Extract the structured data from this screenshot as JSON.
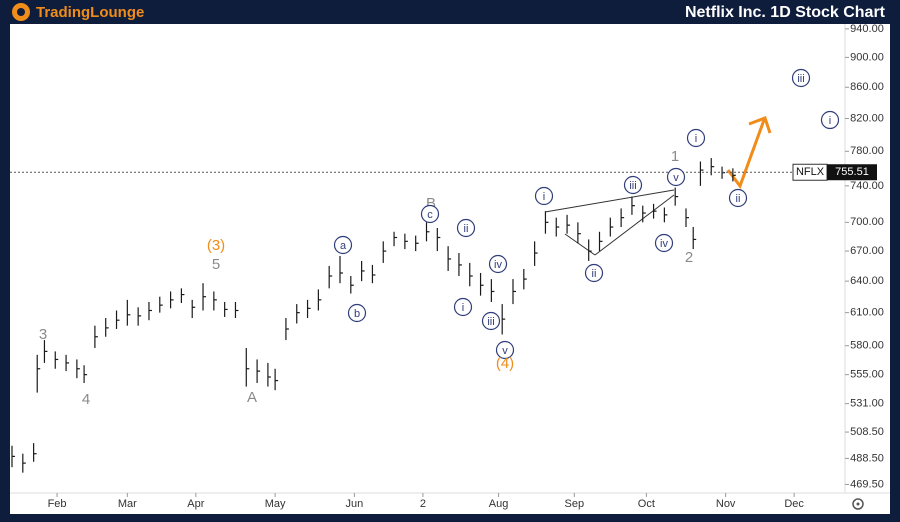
{
  "header": {
    "logo": "TradingLounge",
    "title": "Netflix Inc. 1D Stock Chart"
  },
  "chart_data": {
    "type": "ohlc",
    "log_scale": true,
    "color": "#1a1a1a",
    "xlim": [
      0,
      231
    ],
    "ylim": [
      462,
      947
    ],
    "xticks": [
      {
        "value": 12.5,
        "label": "Feb"
      },
      {
        "value": 32,
        "label": "Mar"
      },
      {
        "value": 51,
        "label": "Apr"
      },
      {
        "value": 73,
        "label": "May"
      },
      {
        "value": 95,
        "label": "Jun"
      },
      {
        "value": 114,
        "label": "2"
      },
      {
        "value": 135,
        "label": "Aug"
      },
      {
        "value": 156,
        "label": "Sep"
      },
      {
        "value": 176,
        "label": "Oct"
      },
      {
        "value": 198,
        "label": "Nov"
      },
      {
        "value": 217,
        "label": "Dec"
      }
    ],
    "yticks": [
      {
        "value": 940,
        "label": "940.00"
      },
      {
        "value": 900,
        "label": "900.00"
      },
      {
        "value": 860,
        "label": "860.00"
      },
      {
        "value": 820,
        "label": "820.00"
      },
      {
        "value": 780,
        "label": "780.00"
      },
      {
        "value": 740,
        "label": "740.00"
      },
      {
        "value": 700,
        "label": "700.00"
      },
      {
        "value": 670,
        "label": "670.00"
      },
      {
        "value": 640,
        "label": "640.00"
      },
      {
        "value": 610,
        "label": "610.00"
      },
      {
        "value": 580,
        "label": "580.00"
      },
      {
        "value": 555,
        "label": "555.00"
      },
      {
        "value": 531,
        "label": "531.00"
      },
      {
        "value": 508.5,
        "label": "508.50"
      },
      {
        "value": 488.5,
        "label": "488.50"
      },
      {
        "value": 469.5,
        "label": "469.50"
      }
    ],
    "x": [
      0,
      3,
      6,
      7,
      9,
      12,
      15,
      18,
      20,
      23,
      26,
      29,
      32,
      35,
      38,
      41,
      44,
      47,
      50,
      53,
      56,
      59,
      62,
      65,
      68,
      71,
      73,
      76,
      79,
      82,
      85,
      88,
      91,
      94,
      97,
      100,
      103,
      106,
      109,
      112,
      115,
      118,
      121,
      124,
      127,
      130,
      133,
      136,
      139,
      142,
      145,
      148,
      151,
      154,
      157,
      160,
      163,
      166,
      169,
      172,
      175,
      178,
      181,
      184,
      187,
      189,
      191,
      194,
      197,
      200
    ],
    "high": [
      498,
      492,
      500,
      572,
      585,
      575,
      572,
      568,
      563,
      598,
      605,
      612,
      622,
      615,
      620,
      625,
      630,
      633,
      622,
      638,
      630,
      620,
      620,
      578,
      568,
      565,
      560,
      605,
      618,
      622,
      632,
      655,
      665,
      645,
      660,
      656,
      680,
      690,
      688,
      686,
      700,
      694,
      675,
      668,
      658,
      648,
      642,
      618,
      642,
      652,
      680,
      712,
      705,
      708,
      700,
      682,
      690,
      705,
      715,
      728,
      718,
      720,
      716,
      738,
      715,
      695,
      768,
      772,
      762,
      760
    ],
    "low": [
      482,
      478,
      486,
      540,
      565,
      560,
      558,
      552,
      548,
      578,
      588,
      595,
      598,
      598,
      603,
      610,
      614,
      619,
      605,
      612,
      612,
      606,
      605,
      545,
      548,
      545,
      542,
      585,
      600,
      605,
      612,
      633,
      638,
      628,
      640,
      638,
      658,
      675,
      672,
      670,
      680,
      670,
      650,
      645,
      635,
      626,
      620,
      590,
      618,
      632,
      655,
      688,
      685,
      688,
      678,
      660,
      670,
      685,
      695,
      708,
      700,
      704,
      700,
      718,
      695,
      672,
      740,
      752,
      748,
      745
    ],
    "close": [
      490,
      485,
      492,
      560,
      575,
      568,
      565,
      560,
      555,
      588,
      596,
      603,
      608,
      607,
      612,
      617,
      622,
      627,
      615,
      625,
      622,
      613,
      612,
      560,
      558,
      553,
      550,
      595,
      610,
      614,
      622,
      645,
      648,
      636,
      650,
      646,
      670,
      684,
      680,
      678,
      690,
      684,
      662,
      656,
      645,
      636,
      630,
      604,
      630,
      642,
      668,
      700,
      695,
      697,
      688,
      670,
      680,
      695,
      705,
      718,
      710,
      712,
      708,
      728,
      705,
      682,
      758,
      762,
      755,
      752
    ],
    "last_price": {
      "symbol": "NFLX",
      "value": 755.51,
      "label": "755.51"
    },
    "annotations": [
      {
        "text": "3",
        "kind": "gray"
      },
      {
        "text": "4",
        "kind": "gray"
      },
      {
        "text": "(3)",
        "kind": "orange"
      },
      {
        "text": "5",
        "kind": "gray"
      },
      {
        "text": "A",
        "kind": "gray"
      },
      {
        "text": "a",
        "kind": "circled"
      },
      {
        "text": "b",
        "kind": "circled"
      },
      {
        "text": "B",
        "kind": "gray"
      },
      {
        "text": "c",
        "kind": "circled"
      },
      {
        "text": "ii",
        "kind": "circled"
      },
      {
        "text": "i",
        "kind": "circled"
      },
      {
        "text": "iv",
        "kind": "circled"
      },
      {
        "text": "iii",
        "kind": "circled"
      },
      {
        "text": "v",
        "kind": "circled"
      },
      {
        "text": "(4)",
        "kind": "orange"
      },
      {
        "text": "i",
        "kind": "circled"
      },
      {
        "text": "iii",
        "kind": "circled"
      },
      {
        "text": "ii",
        "kind": "circled"
      },
      {
        "text": "iv",
        "kind": "circled"
      },
      {
        "text": "v",
        "kind": "circled"
      },
      {
        "text": "1",
        "kind": "gray"
      },
      {
        "text": "2",
        "kind": "gray"
      },
      {
        "text": "i",
        "kind": "circled"
      },
      {
        "text": "ii",
        "kind": "circled"
      },
      {
        "text": "iii",
        "kind": "circled"
      },
      {
        "text": "i",
        "kind": "circled"
      }
    ]
  }
}
